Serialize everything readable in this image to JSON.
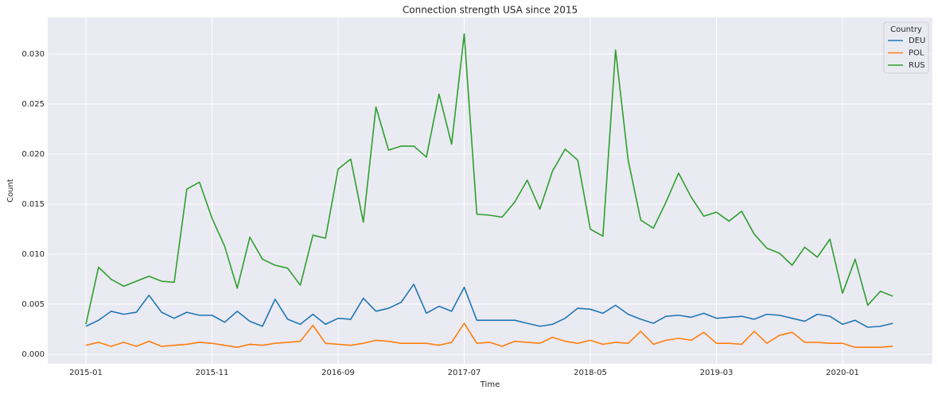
{
  "chart_data": {
    "type": "line",
    "title": "Connection strength USA since 2015",
    "x_label": "Time",
    "y_label": "Count",
    "x": [
      "2015-01",
      "2015-02",
      "2015-03",
      "2015-04",
      "2015-05",
      "2015-06",
      "2015-07",
      "2015-08",
      "2015-09",
      "2015-10",
      "2015-11",
      "2015-12",
      "2016-01",
      "2016-02",
      "2016-03",
      "2016-04",
      "2016-05",
      "2016-06",
      "2016-07",
      "2016-08",
      "2016-09",
      "2016-10",
      "2016-11",
      "2016-12",
      "2017-01",
      "2017-02",
      "2017-03",
      "2017-04",
      "2017-05",
      "2017-06",
      "2017-07",
      "2017-08",
      "2017-09",
      "2017-10",
      "2017-11",
      "2017-12",
      "2018-01",
      "2018-02",
      "2018-03",
      "2018-04",
      "2018-05",
      "2018-06",
      "2018-07",
      "2018-08",
      "2018-09",
      "2018-10",
      "2018-11",
      "2018-12",
      "2019-01",
      "2019-02",
      "2019-03",
      "2019-04",
      "2019-05",
      "2019-06",
      "2019-07",
      "2019-08",
      "2019-09",
      "2019-10",
      "2019-11",
      "2019-12",
      "2020-01",
      "2020-02",
      "2020-03",
      "2020-04",
      "2020-05"
    ],
    "xticks": [
      "2015-01",
      "2015-11",
      "2016-09",
      "2017-07",
      "2018-05",
      "2019-03",
      "2020-01"
    ],
    "ylim": [
      -0.00095,
      0.03365
    ],
    "yticks": [
      {
        "value": 0,
        "label": "0.000"
      },
      {
        "value": 0.005,
        "label": "0.005"
      },
      {
        "value": 0.01,
        "label": "0.010"
      },
      {
        "value": 0.015,
        "label": "0.015"
      },
      {
        "value": 0.02,
        "label": "0.020"
      },
      {
        "value": 0.025,
        "label": "0.025"
      },
      {
        "value": 0.03,
        "label": "0.030"
      }
    ],
    "grid": true,
    "legend_title": "Country",
    "legend_position": "upper right",
    "series": [
      {
        "name": "DEU",
        "color": "#1f77b4",
        "values": [
          0.0028,
          0.0034,
          0.0043,
          0.004,
          0.0042,
          0.0059,
          0.0042,
          0.0036,
          0.0042,
          0.0039,
          0.0039,
          0.0032,
          0.0043,
          0.0033,
          0.0028,
          0.0055,
          0.0035,
          0.003,
          0.004,
          0.003,
          0.0036,
          0.0035,
          0.0056,
          0.0043,
          0.0046,
          0.0052,
          0.007,
          0.0041,
          0.0048,
          0.0043,
          0.0067,
          0.0034,
          0.0034,
          0.0034,
          0.0034,
          0.0031,
          0.0028,
          0.003,
          0.0036,
          0.0046,
          0.0045,
          0.0041,
          0.0049,
          0.004,
          0.0035,
          0.0031,
          0.0038,
          0.0039,
          0.0037,
          0.0041,
          0.0036,
          0.0037,
          0.0038,
          0.0035,
          0.004,
          0.0039,
          0.0036,
          0.0033,
          0.004,
          0.0038,
          0.003,
          0.0034,
          0.0027,
          0.0028,
          0.0031
        ]
      },
      {
        "name": "POL",
        "color": "#ff7f0e",
        "values": [
          0.0009,
          0.0012,
          0.0008,
          0.0012,
          0.0008,
          0.0013,
          0.0008,
          0.0009,
          0.001,
          0.0012,
          0.0011,
          0.0009,
          0.0007,
          0.001,
          0.0009,
          0.0011,
          0.0012,
          0.0013,
          0.0029,
          0.0011,
          0.001,
          0.0009,
          0.0011,
          0.0014,
          0.0013,
          0.0011,
          0.0011,
          0.0011,
          0.0009,
          0.0012,
          0.0031,
          0.0011,
          0.0012,
          0.0008,
          0.0013,
          0.0012,
          0.0011,
          0.0017,
          0.0013,
          0.0011,
          0.0014,
          0.001,
          0.0012,
          0.0011,
          0.0023,
          0.001,
          0.0014,
          0.0016,
          0.0014,
          0.0022,
          0.0011,
          0.0011,
          0.001,
          0.0023,
          0.0011,
          0.0019,
          0.0022,
          0.0012,
          0.0012,
          0.0011,
          0.0011,
          0.0007,
          0.0007,
          0.0007,
          0.0008
        ]
      },
      {
        "name": "RUS",
        "color": "#2ca02c",
        "values": [
          0.003,
          0.0087,
          0.0075,
          0.0068,
          0.0073,
          0.0078,
          0.0073,
          0.0072,
          0.0165,
          0.0172,
          0.0136,
          0.0108,
          0.0066,
          0.0117,
          0.0095,
          0.0089,
          0.0086,
          0.0069,
          0.0119,
          0.0116,
          0.0185,
          0.0195,
          0.0132,
          0.0247,
          0.0204,
          0.0208,
          0.0208,
          0.0197,
          0.026,
          0.021,
          0.032,
          0.014,
          0.0139,
          0.0137,
          0.0152,
          0.0174,
          0.0145,
          0.0183,
          0.0205,
          0.0194,
          0.0125,
          0.0118,
          0.0304,
          0.0194,
          0.0134,
          0.0126,
          0.0152,
          0.0181,
          0.0157,
          0.0138,
          0.0142,
          0.0133,
          0.0143,
          0.012,
          0.0106,
          0.0101,
          0.0089,
          0.0107,
          0.0097,
          0.0115,
          0.0061,
          0.0095,
          0.0049,
          0.0063,
          0.0058
        ]
      }
    ]
  }
}
